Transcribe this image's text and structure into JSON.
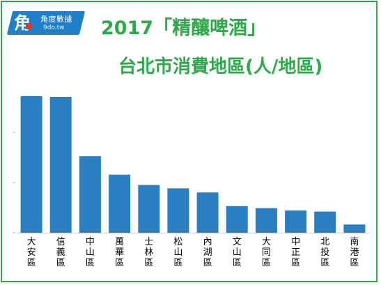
{
  "logo": {
    "mark": "角",
    "name": "角度數據",
    "url": "9do.tw"
  },
  "title_line1": "2017「精釀啤酒」",
  "title_line2": "台北市消費地區(人/地區)",
  "colors": {
    "bar": "#2a7fc3",
    "title": "#2ea84a",
    "frame": "#2ea84a",
    "logo": "#1f7fc9"
  },
  "chart_data": {
    "type": "bar",
    "title": "2017「精釀啤酒」台北市消費地區(人/地區)",
    "categories": [
      "大安區",
      "信義區",
      "中山區",
      "萬華區",
      "士林區",
      "松山區",
      "內湖區",
      "文山區",
      "大同區",
      "中正區",
      "北投區",
      "南港區"
    ],
    "values": [
      100,
      99.5,
      56,
      42.5,
      35,
      32.5,
      29.5,
      19.5,
      18,
      16.3,
      15.5,
      6
    ],
    "xlabel": "",
    "ylabel": "",
    "ylim": [
      0,
      100
    ],
    "grid": false,
    "legend": "none"
  }
}
